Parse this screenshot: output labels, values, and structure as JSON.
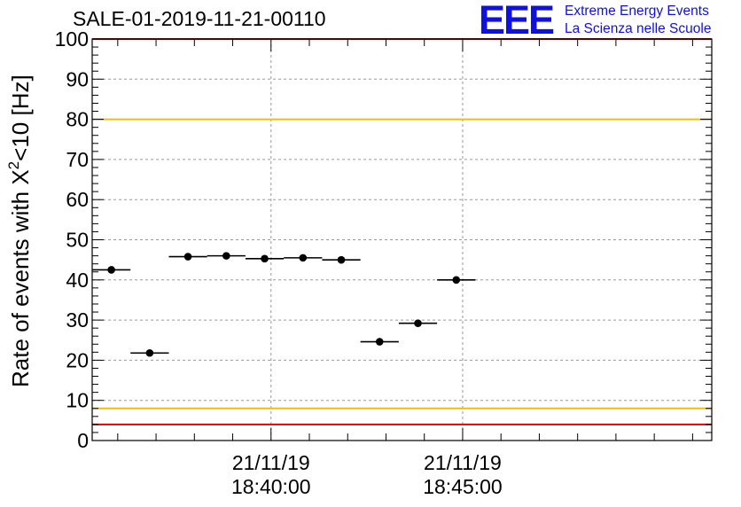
{
  "header": {
    "run_title": "SALE-01-2019-11-21-00110",
    "logo_text": "EEE",
    "logo_line1": "Extreme Energy Events",
    "logo_line2": "La Scienza nelle Scuole"
  },
  "colors": {
    "markers": "#000000",
    "upper_threshold": "#f0c000",
    "lower_threshold": "#f0c000",
    "limit_top": "#e00000",
    "limit_bottom": "#e00000",
    "logo": "#1010e0",
    "grid": "#9a9a9a"
  },
  "chart_data": {
    "type": "scatter",
    "title": "SALE-01-2019-11-21-00110",
    "ylabel_prefix": "Rate of events with X",
    "ylabel_sup": "2",
    "ylabel_suffix": "<10 [Hz]",
    "xlabel": "",
    "ylim": [
      0,
      100
    ],
    "yticks": [
      0,
      10,
      20,
      30,
      40,
      50,
      60,
      70,
      80,
      90,
      100
    ],
    "xlim": [
      "2019-11-21T18:35:20",
      "2019-11-21T18:51:30"
    ],
    "xticks": [
      {
        "t": "2019-11-21T18:40:00",
        "date": "21/11/19",
        "time": "18:40:00"
      },
      {
        "t": "2019-11-21T18:45:00",
        "date": "21/11/19",
        "time": "18:45:00"
      }
    ],
    "grid": true,
    "reference_lines": [
      {
        "y": 80,
        "color": "#f0c000"
      },
      {
        "y": 8,
        "color": "#f0c000"
      },
      {
        "y": 100,
        "color": "#e00000"
      },
      {
        "y": 4,
        "color": "#e00000"
      }
    ],
    "points": [
      {
        "x_start": "2019-11-21T18:35:20",
        "x_end": "2019-11-21T18:36:20",
        "x": "2019-11-21T18:35:50",
        "y": 42.5
      },
      {
        "x_start": "2019-11-21T18:36:20",
        "x_end": "2019-11-21T18:37:20",
        "x": "2019-11-21T18:36:50",
        "y": 21.8
      },
      {
        "x_start": "2019-11-21T18:37:20",
        "x_end": "2019-11-21T18:38:20",
        "x": "2019-11-21T18:37:50",
        "y": 45.8
      },
      {
        "x_start": "2019-11-21T18:38:20",
        "x_end": "2019-11-21T18:39:20",
        "x": "2019-11-21T18:38:50",
        "y": 46.0
      },
      {
        "x_start": "2019-11-21T18:39:20",
        "x_end": "2019-11-21T18:40:20",
        "x": "2019-11-21T18:39:50",
        "y": 45.3
      },
      {
        "x_start": "2019-11-21T18:40:20",
        "x_end": "2019-11-21T18:41:20",
        "x": "2019-11-21T18:40:50",
        "y": 45.5
      },
      {
        "x_start": "2019-11-21T18:41:20",
        "x_end": "2019-11-21T18:42:20",
        "x": "2019-11-21T18:41:50",
        "y": 45.0
      },
      {
        "x_start": "2019-11-21T18:42:20",
        "x_end": "2019-11-21T18:43:20",
        "x": "2019-11-21T18:42:50",
        "y": 24.6
      },
      {
        "x_start": "2019-11-21T18:43:20",
        "x_end": "2019-11-21T18:44:20",
        "x": "2019-11-21T18:43:50",
        "y": 29.2
      },
      {
        "x_start": "2019-11-21T18:44:20",
        "x_end": "2019-11-21T18:45:20",
        "x": "2019-11-21T18:44:50",
        "y": 40.0
      }
    ]
  }
}
